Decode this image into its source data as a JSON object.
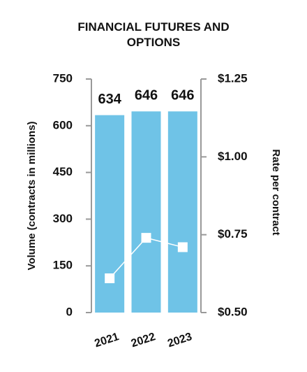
{
  "chart_data": {
    "type": "bar",
    "title": "FINANCIAL FUTURES AND OPTIONS",
    "categories": [
      "2021",
      "2022",
      "2023"
    ],
    "ylabel": "Volume (contracts in millions)",
    "y2label": "Rate per contract",
    "ylim": [
      0,
      750
    ],
    "yticks": [
      0,
      150,
      300,
      450,
      600,
      750
    ],
    "y2lim": [
      0.5,
      1.25
    ],
    "y2ticks": [
      {
        "value": 0.5,
        "label": "$0.50"
      },
      {
        "value": 0.75,
        "label": "$0.75"
      },
      {
        "value": 1.0,
        "label": "$1.00"
      },
      {
        "value": 1.25,
        "label": "$1.25"
      }
    ],
    "series": [
      {
        "type": "bar",
        "color": "#6fc3e7",
        "values": [
          634,
          646,
          646
        ]
      },
      {
        "type": "line",
        "color": "#ffffff",
        "axis": "y2",
        "values": [
          0.61,
          0.74,
          0.71
        ]
      }
    ]
  }
}
